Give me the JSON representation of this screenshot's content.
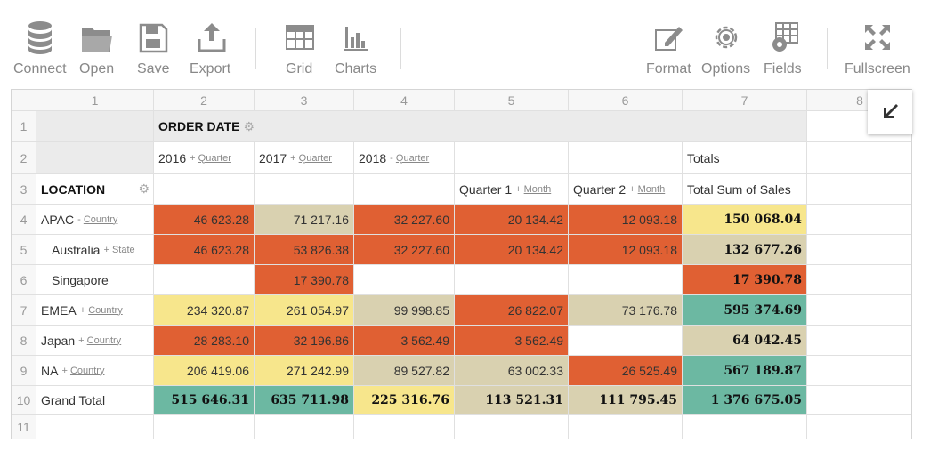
{
  "toolbar": {
    "connect": "Connect",
    "open": "Open",
    "save": "Save",
    "export": "Export",
    "grid": "Grid",
    "charts": "Charts",
    "format": "Format",
    "options": "Options",
    "fields": "Fields",
    "fullscreen": "Fullscreen"
  },
  "columns": [
    "1",
    "2",
    "3",
    "4",
    "5",
    "6",
    "7",
    "8"
  ],
  "rows": [
    "1",
    "2",
    "3",
    "4",
    "5",
    "6",
    "7",
    "8",
    "9",
    "10",
    "11"
  ],
  "header": {
    "order_date": "ORDER DATE",
    "location": "LOCATION",
    "totals": "Totals",
    "total_sum": "Total Sum of Sales",
    "years": [
      {
        "year": "2016",
        "toggle": "+",
        "link": "Quarter"
      },
      {
        "year": "2017",
        "toggle": "+",
        "link": "Quarter"
      },
      {
        "year": "2018",
        "toggle": "-",
        "link": "Quarter"
      }
    ],
    "quarters": [
      {
        "label": "Quarter 1",
        "toggle": "+",
        "link": "Month"
      },
      {
        "label": "Quarter 2",
        "toggle": "+",
        "link": "Month"
      }
    ]
  },
  "body": [
    {
      "label": "APAC",
      "toggle": "-",
      "link": "Country",
      "indent": false,
      "values": [
        "46 623.28",
        "71 217.16",
        "32 227.60",
        "20 134.42",
        "12 093.18",
        "150 068.04"
      ],
      "colors": [
        "#e06033",
        "#d9d1b0",
        "#e06033",
        "#e06033",
        "#e06033",
        "#f7e68c"
      ]
    },
    {
      "label": "Australia",
      "toggle": "+",
      "link": "State",
      "indent": true,
      "values": [
        "46 623.28",
        "53 826.38",
        "32 227.60",
        "20 134.42",
        "12 093.18",
        "132 677.26"
      ],
      "colors": [
        "#e06033",
        "#e06033",
        "#e06033",
        "#e06033",
        "#e06033",
        "#d9d1b0"
      ]
    },
    {
      "label": "Singapore",
      "toggle": "",
      "link": "",
      "indent": true,
      "values": [
        "",
        "17 390.78",
        "",
        "",
        "",
        "17 390.78"
      ],
      "colors": [
        "",
        "#e06033",
        "",
        "",
        "",
        "#e06033"
      ]
    },
    {
      "label": "EMEA",
      "toggle": "+",
      "link": "Country",
      "indent": false,
      "values": [
        "234 320.87",
        "261 054.97",
        "99 998.85",
        "26 822.07",
        "73 176.78",
        "595 374.69"
      ],
      "colors": [
        "#f7e68c",
        "#f7e68c",
        "#d9d1b0",
        "#e06033",
        "#d9d1b0",
        "#6cb8a2"
      ]
    },
    {
      "label": "Japan",
      "toggle": "+",
      "link": "Country",
      "indent": false,
      "values": [
        "28 283.10",
        "32 196.86",
        "3 562.49",
        "3 562.49",
        "",
        "64 042.45"
      ],
      "colors": [
        "#e06033",
        "#e06033",
        "#e06033",
        "#e06033",
        "",
        "#d9d1b0"
      ]
    },
    {
      "label": "NA",
      "toggle": "+",
      "link": "Country",
      "indent": false,
      "values": [
        "206 419.06",
        "271 242.99",
        "89 527.82",
        "63 002.33",
        "26 525.49",
        "567 189.87"
      ],
      "colors": [
        "#f7e68c",
        "#f7e68c",
        "#d9d1b0",
        "#d9d1b0",
        "#e06033",
        "#6cb8a2"
      ]
    },
    {
      "label": "Grand Total",
      "toggle": "",
      "link": "",
      "indent": false,
      "grand": true,
      "values": [
        "515 646.31",
        "635 711.98",
        "225 316.76",
        "113 521.31",
        "111 795.45",
        "1 376 675.05"
      ],
      "colors": [
        "#6cb8a2",
        "#6cb8a2",
        "#f7e68c",
        "#d9d1b0",
        "#d9d1b0",
        "#6cb8a2"
      ]
    }
  ]
}
